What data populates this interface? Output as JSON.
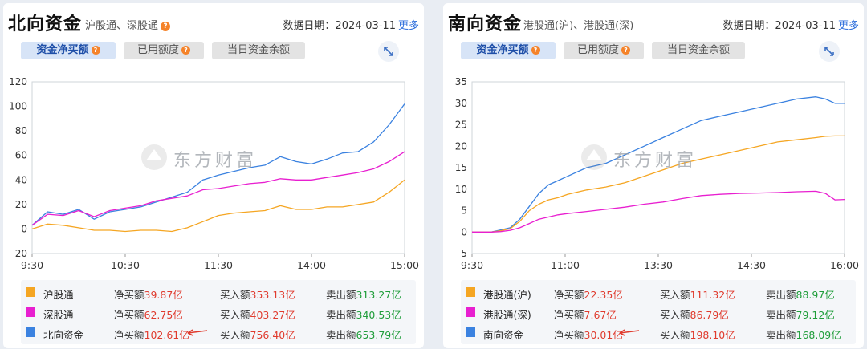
{
  "north": {
    "title": "北向资金",
    "subtitle": "沪股通、深股通",
    "date_label": "数据日期：",
    "date_value": "2024-03-11",
    "more_label": "更多",
    "tabs": [
      {
        "label": "资金净买额",
        "active": true,
        "has_help": true
      },
      {
        "label": "已用额度",
        "active": false,
        "has_help": true
      },
      {
        "label": "当日资金余额",
        "active": false,
        "has_help": false
      }
    ],
    "legend": [
      {
        "name": "沪股通",
        "color": "#f5a623",
        "net_label": "净买额",
        "net_value": "39.87亿",
        "buy_label": "买入额",
        "buy_value": "353.13亿",
        "sell_label": "卖出额",
        "sell_value": "313.27亿"
      },
      {
        "name": "深股通",
        "color": "#e81fd0",
        "net_label": "净买额",
        "net_value": "62.75亿",
        "buy_label": "买入额",
        "buy_value": "403.27亿",
        "sell_label": "卖出额",
        "sell_value": "340.53亿"
      },
      {
        "name": "北向资金",
        "color": "#3b82e0",
        "net_label": "净买额",
        "net_value": "102.61亿",
        "buy_label": "买入额",
        "buy_value": "756.40亿",
        "sell_label": "卖出额",
        "sell_value": "653.79亿"
      }
    ]
  },
  "south": {
    "title": "南向资金",
    "subtitle": "港股通(沪)、港股通(深)",
    "date_label": "数据日期：",
    "date_value": "2024-03-11",
    "more_label": "更多",
    "tabs": [
      {
        "label": "资金净买额",
        "active": true,
        "has_help": true
      },
      {
        "label": "已用额度",
        "active": false,
        "has_help": true
      },
      {
        "label": "当日资金余额",
        "active": false,
        "has_help": false
      }
    ],
    "legend": [
      {
        "name": "港股通(沪)",
        "color": "#f5a623",
        "net_label": "净买额",
        "net_value": "22.35亿",
        "buy_label": "买入额",
        "buy_value": "111.32亿",
        "sell_label": "卖出额",
        "sell_value": "88.97亿"
      },
      {
        "name": "港股通(深)",
        "color": "#e81fd0",
        "net_label": "净买额",
        "net_value": "7.67亿",
        "buy_label": "买入额",
        "buy_value": "86.79亿",
        "sell_label": "卖出额",
        "sell_value": "79.12亿"
      },
      {
        "name": "南向资金",
        "color": "#3b82e0",
        "net_label": "净买额",
        "net_value": "30.01亿",
        "buy_label": "买入额",
        "buy_value": "198.10亿",
        "sell_label": "卖出额",
        "sell_value": "168.09亿"
      }
    ]
  },
  "chart_data": [
    {
      "type": "line",
      "title": "",
      "xlabel": "",
      "ylabel": "",
      "ylim": [
        -20,
        120
      ],
      "yticks": [
        120,
        100,
        80,
        60,
        40,
        20,
        0,
        -20
      ],
      "xticks": [
        "9:30",
        "10:30",
        "11:30",
        "14:00",
        "15:00"
      ],
      "xlim": [
        0,
        240
      ],
      "grid": false,
      "x": [
        0,
        10,
        20,
        30,
        40,
        50,
        60,
        70,
        80,
        90,
        100,
        110,
        120,
        130,
        140,
        150,
        160,
        170,
        180,
        190,
        200,
        210,
        220,
        230,
        240
      ],
      "series": [
        {
          "name": "北向资金",
          "color": "#3b82e0",
          "values": [
            3,
            14,
            12,
            16,
            8,
            14,
            16,
            18,
            22,
            26,
            30,
            40,
            44,
            47,
            50,
            52,
            59,
            55,
            53,
            57,
            62,
            63,
            71,
            85,
            102
          ]
        },
        {
          "name": "深股通",
          "color": "#e81fd0",
          "values": [
            3,
            12,
            11,
            15,
            10,
            15,
            17,
            19,
            23,
            25,
            27,
            32,
            33,
            35,
            37,
            38,
            41,
            40,
            40,
            42,
            44,
            46,
            49,
            55,
            63
          ]
        },
        {
          "name": "沪股通",
          "color": "#f5a623",
          "values": [
            0,
            4,
            3,
            1,
            -1,
            -1,
            -2,
            -1,
            -1,
            -2,
            1,
            6,
            11,
            13,
            14,
            15,
            19,
            16,
            16,
            18,
            18,
            20,
            22,
            30,
            40
          ]
        }
      ]
    },
    {
      "type": "line",
      "title": "",
      "xlabel": "",
      "ylabel": "",
      "ylim": [
        -5,
        35
      ],
      "yticks": [
        35,
        30,
        25,
        20,
        15,
        10,
        5,
        0,
        -5
      ],
      "xticks": [
        "9:30",
        "11:00",
        "13:30",
        "14:30",
        "16:00"
      ],
      "xlim": [
        0,
        390
      ],
      "grid": false,
      "x": [
        0,
        10,
        20,
        30,
        40,
        50,
        60,
        70,
        80,
        90,
        100,
        120,
        140,
        160,
        180,
        200,
        220,
        240,
        260,
        280,
        300,
        320,
        340,
        360,
        370,
        380,
        390
      ],
      "series": [
        {
          "name": "南向资金",
          "color": "#3b82e0",
          "values": [
            0,
            0,
            0,
            0.5,
            1,
            3,
            6,
            9,
            11,
            12,
            13,
            15,
            16,
            18,
            20,
            22,
            24,
            26,
            27,
            28,
            29,
            30,
            31,
            31.5,
            31,
            30,
            30
          ]
        },
        {
          "name": "港股通(沪)",
          "color": "#f5a623",
          "values": [
            0,
            0,
            0,
            0.3,
            0.8,
            2.5,
            5,
            6.5,
            7.5,
            8,
            8.8,
            9.8,
            10.5,
            11.5,
            13,
            14.5,
            16,
            17,
            18,
            19,
            20,
            21,
            21.5,
            22,
            22.3,
            22.4,
            22.4
          ]
        },
        {
          "name": "港股通(深)",
          "color": "#e81fd0",
          "values": [
            0,
            0,
            0,
            0.1,
            0.4,
            1,
            2,
            3,
            3.5,
            4,
            4.3,
            4.8,
            5.3,
            5.8,
            6.5,
            7,
            7.8,
            8.5,
            8.8,
            9,
            9.1,
            9.2,
            9.4,
            9.5,
            9,
            7.5,
            7.6
          ]
        }
      ]
    }
  ]
}
